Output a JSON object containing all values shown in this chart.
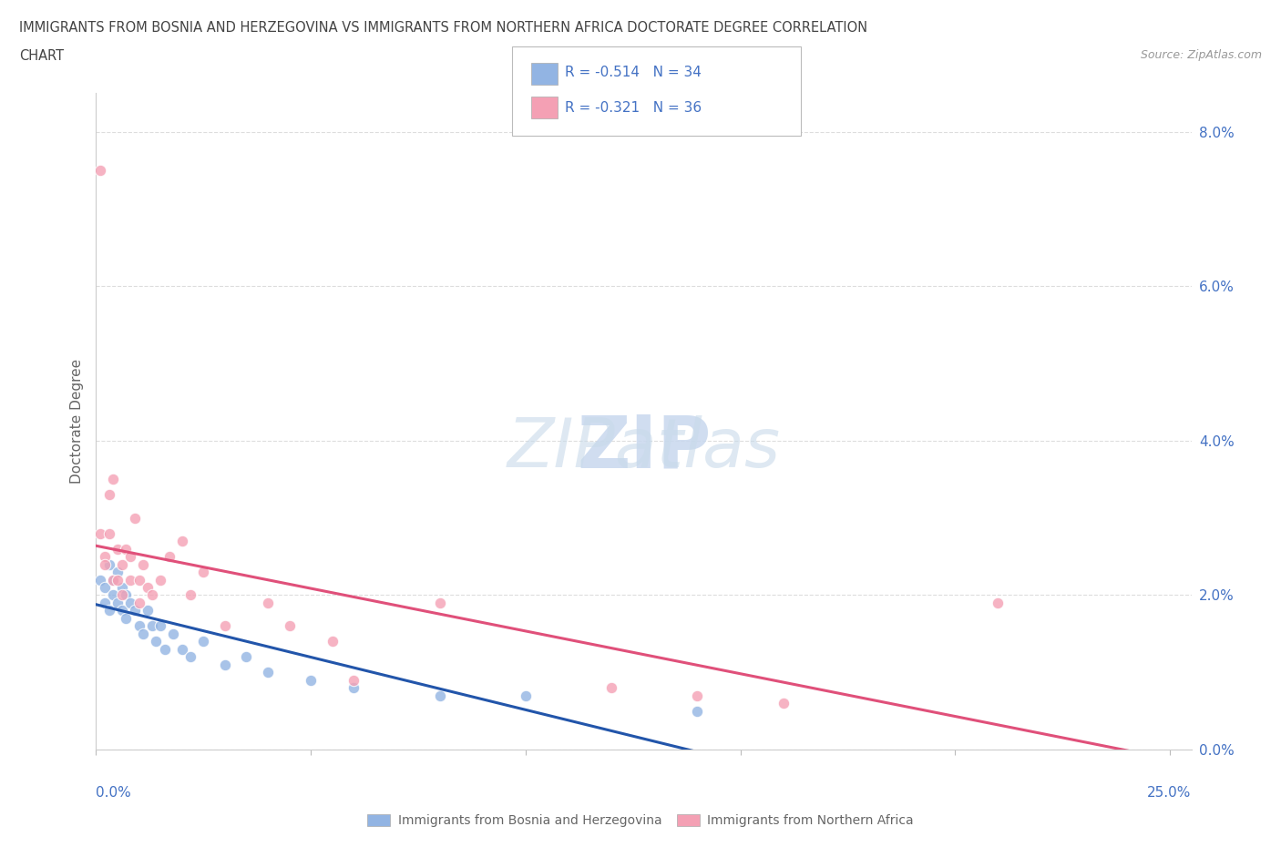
{
  "title_line1": "IMMIGRANTS FROM BOSNIA AND HERZEGOVINA VS IMMIGRANTS FROM NORTHERN AFRICA DOCTORATE DEGREE CORRELATION",
  "title_line2": "CHART",
  "source": "Source: ZipAtlas.com",
  "ylabel": "Doctorate Degree",
  "legend_r1": "R = -0.514   N = 34",
  "legend_r2": "R = -0.321   N = 36",
  "color_bosnia": "#92b4e3",
  "color_northern_africa": "#f4a0b4",
  "color_text_blue": "#4472c4",
  "color_line_bosnia": "#2255aa",
  "color_line_africa": "#e0507a",
  "bosnia_scatter": [
    [
      0.001,
      0.022
    ],
    [
      0.002,
      0.021
    ],
    [
      0.002,
      0.019
    ],
    [
      0.003,
      0.024
    ],
    [
      0.003,
      0.018
    ],
    [
      0.004,
      0.022
    ],
    [
      0.004,
      0.02
    ],
    [
      0.005,
      0.023
    ],
    [
      0.005,
      0.019
    ],
    [
      0.006,
      0.021
    ],
    [
      0.006,
      0.018
    ],
    [
      0.007,
      0.02
    ],
    [
      0.007,
      0.017
    ],
    [
      0.008,
      0.019
    ],
    [
      0.009,
      0.018
    ],
    [
      0.01,
      0.016
    ],
    [
      0.011,
      0.015
    ],
    [
      0.012,
      0.018
    ],
    [
      0.013,
      0.016
    ],
    [
      0.014,
      0.014
    ],
    [
      0.015,
      0.016
    ],
    [
      0.016,
      0.013
    ],
    [
      0.018,
      0.015
    ],
    [
      0.02,
      0.013
    ],
    [
      0.022,
      0.012
    ],
    [
      0.025,
      0.014
    ],
    [
      0.03,
      0.011
    ],
    [
      0.035,
      0.012
    ],
    [
      0.04,
      0.01
    ],
    [
      0.05,
      0.009
    ],
    [
      0.06,
      0.008
    ],
    [
      0.08,
      0.007
    ],
    [
      0.1,
      0.007
    ],
    [
      0.14,
      0.005
    ]
  ],
  "northern_africa_scatter": [
    [
      0.001,
      0.075
    ],
    [
      0.001,
      0.028
    ],
    [
      0.002,
      0.025
    ],
    [
      0.002,
      0.024
    ],
    [
      0.003,
      0.033
    ],
    [
      0.003,
      0.028
    ],
    [
      0.004,
      0.022
    ],
    [
      0.004,
      0.035
    ],
    [
      0.005,
      0.026
    ],
    [
      0.005,
      0.022
    ],
    [
      0.006,
      0.024
    ],
    [
      0.006,
      0.02
    ],
    [
      0.007,
      0.026
    ],
    [
      0.008,
      0.025
    ],
    [
      0.008,
      0.022
    ],
    [
      0.009,
      0.03
    ],
    [
      0.01,
      0.022
    ],
    [
      0.01,
      0.019
    ],
    [
      0.011,
      0.024
    ],
    [
      0.012,
      0.021
    ],
    [
      0.013,
      0.02
    ],
    [
      0.015,
      0.022
    ],
    [
      0.017,
      0.025
    ],
    [
      0.02,
      0.027
    ],
    [
      0.022,
      0.02
    ],
    [
      0.025,
      0.023
    ],
    [
      0.03,
      0.016
    ],
    [
      0.04,
      0.019
    ],
    [
      0.045,
      0.016
    ],
    [
      0.055,
      0.014
    ],
    [
      0.06,
      0.009
    ],
    [
      0.08,
      0.019
    ],
    [
      0.12,
      0.008
    ],
    [
      0.14,
      0.007
    ],
    [
      0.16,
      0.006
    ],
    [
      0.21,
      0.019
    ]
  ],
  "xlim": [
    0.0,
    0.255
  ],
  "ylim": [
    0.0,
    0.085
  ],
  "x_ticks": [
    0.0,
    0.05,
    0.1,
    0.15,
    0.2,
    0.25
  ],
  "y_ticks": [
    0.0,
    0.02,
    0.04,
    0.06,
    0.08
  ]
}
